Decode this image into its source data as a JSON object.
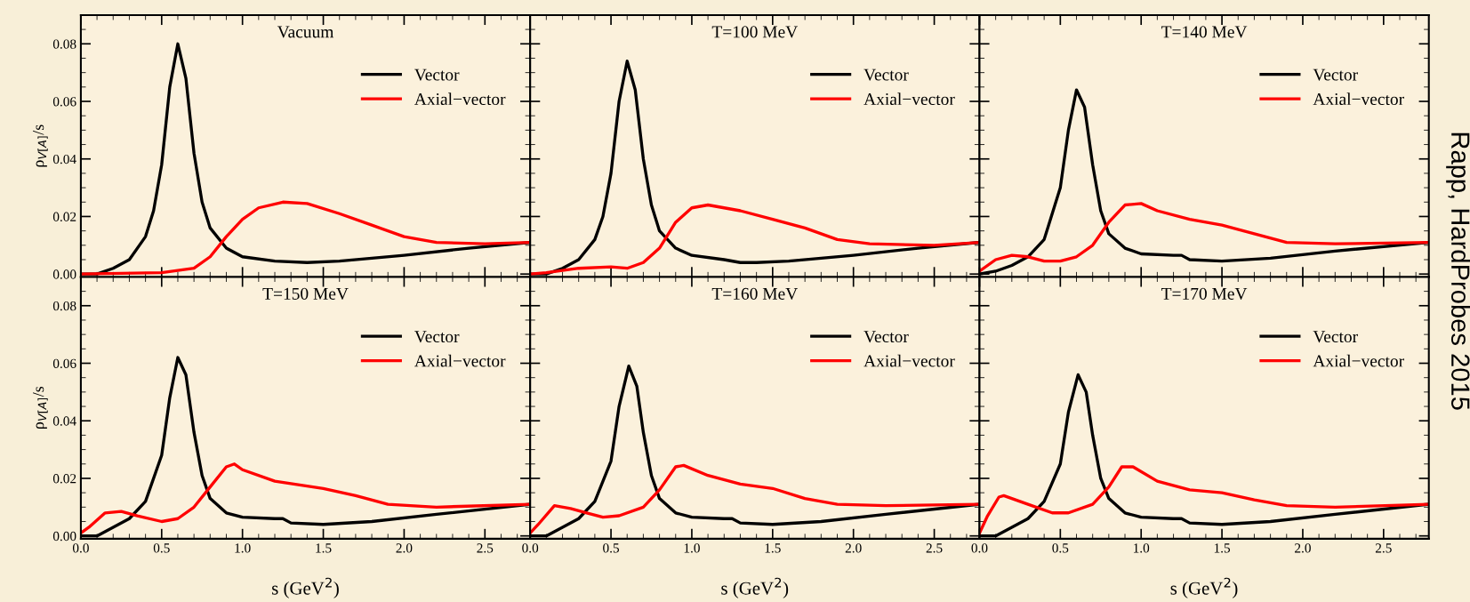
{
  "chart_data": [
    {
      "type": "line",
      "title": "Vacuum",
      "ylabel": "ρ$_{V[A]}$/s",
      "xlim": [
        0,
        2.78
      ],
      "ylim": [
        -0.001,
        0.09
      ],
      "xticks": [
        0,
        0.5,
        1,
        1.5,
        2,
        2.5
      ],
      "yticks": [
        {
          "value": 0,
          "label": "0.00"
        },
        0.02,
        0.04,
        0.06,
        0.08
      ],
      "tick_labels": "y",
      "legend": "right",
      "grid": false,
      "series": [
        {
          "name": "Vector",
          "color": "#000000",
          "x": [
            0,
            0.1,
            0.2,
            0.3,
            0.4,
            0.45,
            0.5,
            0.55,
            0.6,
            0.65,
            0.7,
            0.75,
            0.8,
            0.9,
            1.0,
            1.2,
            1.4,
            1.6,
            2.0,
            2.4,
            2.78
          ],
          "values": [
            0,
            0,
            0.002,
            0.005,
            0.013,
            0.022,
            0.038,
            0.065,
            0.08,
            0.068,
            0.042,
            0.025,
            0.016,
            0.009,
            0.006,
            0.0045,
            0.004,
            0.0045,
            0.0065,
            0.009,
            0.011
          ]
        },
        {
          "name": "Axial−vector",
          "color": "#ff0000",
          "x": [
            0,
            0.5,
            0.7,
            0.8,
            0.9,
            1.0,
            1.1,
            1.25,
            1.4,
            1.6,
            1.8,
            2.0,
            2.2,
            2.5,
            2.78
          ],
          "values": [
            0,
            0.0005,
            0.002,
            0.006,
            0.013,
            0.019,
            0.023,
            0.025,
            0.0245,
            0.021,
            0.017,
            0.013,
            0.011,
            0.0105,
            0.011
          ]
        }
      ]
    },
    {
      "type": "line",
      "title": "T=100 MeV",
      "xlim": [
        0,
        2.78
      ],
      "ylim": [
        -0.001,
        0.09
      ],
      "xticks": [
        0,
        0.5,
        1,
        1.5,
        2,
        2.5
      ],
      "yticks": [
        0,
        0.02,
        0.04,
        0.06,
        0.08
      ],
      "tick_labels": false,
      "legend": "right",
      "grid": false,
      "series": [
        {
          "name": "Vector",
          "color": "#000000",
          "x": [
            0,
            0.1,
            0.2,
            0.3,
            0.4,
            0.45,
            0.5,
            0.55,
            0.6,
            0.65,
            0.7,
            0.75,
            0.8,
            0.9,
            1.0,
            1.2,
            1.3,
            1.4,
            1.6,
            2.0,
            2.4,
            2.78
          ],
          "values": [
            0,
            0,
            0.002,
            0.005,
            0.012,
            0.02,
            0.035,
            0.06,
            0.074,
            0.064,
            0.04,
            0.024,
            0.015,
            0.009,
            0.0065,
            0.005,
            0.004,
            0.004,
            0.0045,
            0.0065,
            0.009,
            0.011
          ]
        },
        {
          "name": "Axial−vector",
          "color": "#ff0000",
          "x": [
            0,
            0.1,
            0.3,
            0.5,
            0.6,
            0.7,
            0.8,
            0.9,
            1.0,
            1.1,
            1.3,
            1.5,
            1.7,
            1.9,
            2.1,
            2.5,
            2.78
          ],
          "values": [
            0,
            0.0005,
            0.002,
            0.0025,
            0.002,
            0.004,
            0.009,
            0.018,
            0.023,
            0.024,
            0.022,
            0.019,
            0.016,
            0.012,
            0.0105,
            0.01,
            0.011
          ]
        }
      ]
    },
    {
      "type": "line",
      "title": "T=140 MeV",
      "xlim": [
        0,
        2.78
      ],
      "ylim": [
        -0.001,
        0.09
      ],
      "xticks": [
        0,
        0.5,
        1,
        1.5,
        2,
        2.5
      ],
      "yticks": [
        0,
        0.02,
        0.04,
        0.06,
        0.08
      ],
      "tick_labels": false,
      "legend": "right",
      "grid": false,
      "annotations": [
        "Rapp, HardProbes 2015"
      ],
      "series": [
        {
          "name": "Vector",
          "color": "#000000",
          "x": [
            0,
            0.1,
            0.2,
            0.3,
            0.4,
            0.5,
            0.55,
            0.6,
            0.65,
            0.7,
            0.75,
            0.8,
            0.9,
            1.0,
            1.2,
            1.25,
            1.3,
            1.5,
            1.8,
            2.2,
            2.78
          ],
          "values": [
            0,
            0.001,
            0.003,
            0.006,
            0.012,
            0.03,
            0.05,
            0.064,
            0.058,
            0.038,
            0.022,
            0.014,
            0.009,
            0.007,
            0.0065,
            0.0065,
            0.005,
            0.0045,
            0.0055,
            0.008,
            0.011
          ]
        },
        {
          "name": "Axial−vector",
          "color": "#ff0000",
          "x": [
            0,
            0.1,
            0.2,
            0.3,
            0.4,
            0.5,
            0.6,
            0.7,
            0.8,
            0.9,
            1.0,
            1.1,
            1.3,
            1.5,
            1.7,
            1.9,
            2.2,
            2.78
          ],
          "values": [
            0.001,
            0.005,
            0.0065,
            0.006,
            0.0045,
            0.0045,
            0.006,
            0.01,
            0.018,
            0.024,
            0.0245,
            0.022,
            0.019,
            0.017,
            0.014,
            0.011,
            0.0105,
            0.011
          ]
        }
      ]
    },
    {
      "type": "line",
      "title": "T=150 MeV",
      "xlabel": "s (GeV$^{2}$)",
      "ylabel": "ρ$_{V[A]}$/s",
      "xlim": [
        0,
        2.78
      ],
      "ylim": [
        -0.001,
        0.09
      ],
      "xticks": [
        {
          "value": 0,
          "label": "0.0"
        },
        0.5,
        {
          "value": 1,
          "label": "1.0"
        },
        1.5,
        {
          "value": 2,
          "label": "2.0"
        },
        2.5
      ],
      "yticks": [
        {
          "value": 0,
          "label": "0.00"
        },
        0.02,
        0.04,
        0.06,
        0.08
      ],
      "legend": "right",
      "grid": false,
      "series": [
        {
          "name": "Vector",
          "color": "#000000",
          "x": [
            0,
            0.1,
            0.2,
            0.3,
            0.4,
            0.5,
            0.55,
            0.6,
            0.65,
            0.7,
            0.75,
            0.8,
            0.9,
            1.0,
            1.2,
            1.25,
            1.3,
            1.5,
            1.8,
            2.2,
            2.78
          ],
          "values": [
            0,
            0,
            0.003,
            0.006,
            0.012,
            0.028,
            0.048,
            0.062,
            0.056,
            0.036,
            0.021,
            0.013,
            0.008,
            0.0065,
            0.006,
            0.006,
            0.0045,
            0.004,
            0.005,
            0.0075,
            0.011
          ]
        },
        {
          "name": "Axial−vector",
          "color": "#ff0000",
          "x": [
            0,
            0.05,
            0.15,
            0.25,
            0.35,
            0.5,
            0.6,
            0.7,
            0.8,
            0.9,
            0.95,
            1.0,
            1.2,
            1.5,
            1.7,
            1.9,
            2.2,
            2.78
          ],
          "values": [
            0.001,
            0.003,
            0.008,
            0.0085,
            0.007,
            0.005,
            0.006,
            0.01,
            0.017,
            0.024,
            0.025,
            0.023,
            0.019,
            0.0165,
            0.014,
            0.011,
            0.01,
            0.011
          ]
        }
      ]
    },
    {
      "type": "line",
      "title": "T=160 MeV",
      "xlabel": "s (GeV$^{2}$)",
      "xlim": [
        0,
        2.78
      ],
      "ylim": [
        -0.001,
        0.09
      ],
      "xticks": [
        {
          "value": 0,
          "label": "0.0"
        },
        0.5,
        {
          "value": 1,
          "label": "1.0"
        },
        1.5,
        {
          "value": 2,
          "label": "2.0"
        },
        2.5
      ],
      "yticks": [
        0,
        0.02,
        0.04,
        0.06,
        0.08
      ],
      "tick_labels": "x",
      "legend": "right",
      "grid": false,
      "series": [
        {
          "name": "Vector",
          "color": "#000000",
          "x": [
            0,
            0.1,
            0.2,
            0.3,
            0.4,
            0.5,
            0.55,
            0.61,
            0.66,
            0.7,
            0.75,
            0.8,
            0.9,
            1.0,
            1.2,
            1.25,
            1.3,
            1.5,
            1.8,
            2.2,
            2.78
          ],
          "values": [
            0,
            0,
            0.003,
            0.006,
            0.012,
            0.026,
            0.045,
            0.059,
            0.052,
            0.036,
            0.021,
            0.013,
            0.008,
            0.0065,
            0.006,
            0.006,
            0.0045,
            0.004,
            0.005,
            0.0075,
            0.011
          ]
        },
        {
          "name": "Axial−vector",
          "color": "#ff0000",
          "x": [
            0,
            0.05,
            0.15,
            0.25,
            0.35,
            0.45,
            0.55,
            0.7,
            0.8,
            0.9,
            0.95,
            1.1,
            1.3,
            1.5,
            1.7,
            1.9,
            2.2,
            2.78
          ],
          "values": [
            0.001,
            0.004,
            0.0105,
            0.0095,
            0.008,
            0.0065,
            0.007,
            0.01,
            0.016,
            0.024,
            0.0245,
            0.021,
            0.018,
            0.0165,
            0.013,
            0.011,
            0.0105,
            0.011
          ]
        }
      ]
    },
    {
      "type": "line",
      "title": "T=170 MeV",
      "xlabel": "s (GeV$^{2}$)",
      "xlim": [
        0,
        2.78
      ],
      "ylim": [
        -0.001,
        0.09
      ],
      "xticks": [
        {
          "value": 0,
          "label": "0.0"
        },
        0.5,
        {
          "value": 1,
          "label": "1.0"
        },
        1.5,
        {
          "value": 2,
          "label": "2.0"
        },
        2.5
      ],
      "yticks": [
        0,
        0.02,
        0.04,
        0.06,
        0.08
      ],
      "tick_labels": "x",
      "legend": "right",
      "grid": false,
      "series": [
        {
          "name": "Vector",
          "color": "#000000",
          "x": [
            0,
            0.1,
            0.2,
            0.3,
            0.4,
            0.5,
            0.55,
            0.61,
            0.66,
            0.7,
            0.75,
            0.8,
            0.9,
            1.0,
            1.2,
            1.25,
            1.3,
            1.5,
            1.8,
            2.2,
            2.78
          ],
          "values": [
            0,
            0,
            0.003,
            0.006,
            0.012,
            0.025,
            0.043,
            0.056,
            0.05,
            0.035,
            0.02,
            0.013,
            0.008,
            0.0065,
            0.006,
            0.006,
            0.0045,
            0.004,
            0.005,
            0.0075,
            0.011
          ]
        },
        {
          "name": "Axial−vector",
          "color": "#ff0000",
          "x": [
            0,
            0.05,
            0.12,
            0.15,
            0.2,
            0.3,
            0.45,
            0.55,
            0.7,
            0.8,
            0.88,
            0.95,
            1.1,
            1.3,
            1.5,
            1.7,
            1.9,
            2.2,
            2.78
          ],
          "values": [
            0.001,
            0.007,
            0.0135,
            0.014,
            0.013,
            0.011,
            0.008,
            0.008,
            0.011,
            0.017,
            0.024,
            0.024,
            0.019,
            0.016,
            0.015,
            0.0125,
            0.0105,
            0.01,
            0.011
          ]
        }
      ]
    }
  ]
}
